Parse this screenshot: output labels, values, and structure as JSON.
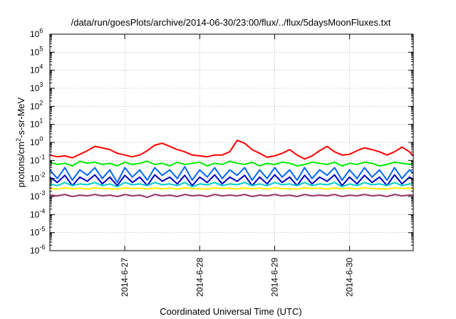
{
  "chart_data": {
    "type": "line",
    "title": "/data/run/goesPlots/archive/2014-06-30/23:00/flux/../flux/5daysMoonFluxes.txt",
    "xlabel": "Coordinated Universal Time (UTC)",
    "ylabel": {
      "prefix": "protons/cm",
      "sup": "2",
      "suffix": "-s-sr-MeV"
    },
    "yscale": "log",
    "ylim": [
      1e-06,
      1000000.0
    ],
    "xlim": [
      0,
      4.85
    ],
    "grid": true,
    "y_ticks": [
      {
        "exp": -6,
        "base": "10",
        "sup": "-6"
      },
      {
        "exp": -5,
        "base": "10",
        "sup": "-5"
      },
      {
        "exp": -4,
        "base": "10",
        "sup": "-4"
      },
      {
        "exp": -3,
        "base": "10",
        "sup": "-3"
      },
      {
        "exp": -2,
        "base": "10",
        "sup": "-2"
      },
      {
        "exp": -1,
        "base": "10",
        "sup": "-1"
      },
      {
        "exp": 0,
        "base": "10",
        "sup": "0"
      },
      {
        "exp": 1,
        "base": "10",
        "sup": "1"
      },
      {
        "exp": 2,
        "base": "10",
        "sup": "2"
      },
      {
        "exp": 3,
        "base": "10",
        "sup": "3"
      },
      {
        "exp": 4,
        "base": "10",
        "sup": "4"
      },
      {
        "exp": 5,
        "base": "10",
        "sup": "5"
      },
      {
        "exp": 6,
        "base": "10",
        "sup": "6"
      }
    ],
    "x_ticks": [
      {
        "day": 1,
        "label": "2014-6-27"
      },
      {
        "day": 2,
        "label": "2014-6-28"
      },
      {
        "day": 3,
        "label": "2014-6-29"
      },
      {
        "day": 4,
        "label": "2014-6-30"
      }
    ],
    "x": [
      0.0,
      0.1,
      0.2,
      0.3,
      0.4,
      0.5,
      0.6,
      0.7,
      0.8,
      0.9,
      1.0,
      1.1,
      1.2,
      1.3,
      1.4,
      1.5,
      1.6,
      1.7,
      1.8,
      1.9,
      2.0,
      2.1,
      2.2,
      2.3,
      2.4,
      2.5,
      2.6,
      2.7,
      2.8,
      2.9,
      3.0,
      3.1,
      3.2,
      3.3,
      3.4,
      3.5,
      3.6,
      3.7,
      3.8,
      3.9,
      4.0,
      4.1,
      4.2,
      4.3,
      4.4,
      4.5,
      4.6,
      4.7,
      4.8,
      4.85
    ],
    "series": [
      {
        "color": "#ff0000",
        "values": [
          0.2,
          0.16,
          0.18,
          0.14,
          0.22,
          0.35,
          0.6,
          0.5,
          0.4,
          0.25,
          0.2,
          0.16,
          0.2,
          0.35,
          0.7,
          0.9,
          0.6,
          0.4,
          0.3,
          0.2,
          0.18,
          0.16,
          0.2,
          0.2,
          0.3,
          1.3,
          0.9,
          0.4,
          0.25,
          0.15,
          0.18,
          0.25,
          0.4,
          0.2,
          0.12,
          0.18,
          0.35,
          0.6,
          0.3,
          0.2,
          0.22,
          0.35,
          0.5,
          0.4,
          0.3,
          0.2,
          0.3,
          0.55,
          0.3,
          0.18
        ]
      },
      {
        "color": "#00ee00",
        "values": [
          0.08,
          0.06,
          0.07,
          0.05,
          0.09,
          0.07,
          0.08,
          0.06,
          0.07,
          0.05,
          0.08,
          0.06,
          0.07,
          0.09,
          0.06,
          0.07,
          0.05,
          0.08,
          0.06,
          0.07,
          0.08,
          0.05,
          0.07,
          0.06,
          0.09,
          0.07,
          0.06,
          0.08,
          0.05,
          0.07,
          0.06,
          0.08,
          0.07,
          0.05,
          0.06,
          0.08,
          0.07,
          0.06,
          0.08,
          0.05,
          0.07,
          0.06,
          0.08,
          0.07,
          0.05,
          0.06,
          0.08,
          0.07,
          0.06,
          0.07
        ]
      },
      {
        "color": "#0066ff",
        "values": [
          0.03,
          0.01,
          0.04,
          0.008,
          0.03,
          0.015,
          0.04,
          0.01,
          0.03,
          0.006,
          0.04,
          0.012,
          0.03,
          0.008,
          0.04,
          0.015,
          0.03,
          0.01,
          0.045,
          0.008,
          0.03,
          0.012,
          0.04,
          0.01,
          0.03,
          0.015,
          0.04,
          0.008,
          0.03,
          0.01,
          0.04,
          0.012,
          0.03,
          0.008,
          0.04,
          0.01,
          0.03,
          0.015,
          0.04,
          0.008,
          0.03,
          0.01,
          0.04,
          0.012,
          0.03,
          0.008,
          0.04,
          0.01,
          0.03,
          0.02
        ]
      },
      {
        "color": "#0000cc",
        "values": [
          0.012,
          0.006,
          0.015,
          0.004,
          0.012,
          0.007,
          0.016,
          0.005,
          0.012,
          0.004,
          0.015,
          0.006,
          0.012,
          0.004,
          0.016,
          0.007,
          0.012,
          0.005,
          0.015,
          0.004,
          0.012,
          0.006,
          0.016,
          0.005,
          0.012,
          0.007,
          0.015,
          0.004,
          0.012,
          0.005,
          0.016,
          0.006,
          0.012,
          0.004,
          0.015,
          0.005,
          0.012,
          0.007,
          0.016,
          0.004,
          0.012,
          0.005,
          0.015,
          0.006,
          0.012,
          0.004,
          0.016,
          0.005,
          0.012,
          0.009
        ]
      },
      {
        "color": "#00cccc",
        "values": [
          0.005,
          0.004,
          0.006,
          0.004,
          0.005,
          0.0045,
          0.006,
          0.004,
          0.005,
          0.0035,
          0.006,
          0.0045,
          0.005,
          0.004,
          0.006,
          0.0045,
          0.005,
          0.004,
          0.006,
          0.0035,
          0.005,
          0.0045,
          0.006,
          0.004,
          0.005,
          0.0045,
          0.006,
          0.004,
          0.005,
          0.004,
          0.006,
          0.0045,
          0.005,
          0.004,
          0.006,
          0.004,
          0.005,
          0.0045,
          0.006,
          0.0035,
          0.005,
          0.004,
          0.006,
          0.0045,
          0.005,
          0.004,
          0.006,
          0.004,
          0.005,
          0.005
        ]
      },
      {
        "color": "#ffee00",
        "values": [
          0.0028,
          0.0026,
          0.003,
          0.0027,
          0.0029,
          0.0026,
          0.003,
          0.0028,
          0.0027,
          0.0026,
          0.003,
          0.0028,
          0.0029,
          0.0026,
          0.003,
          0.0027,
          0.0029,
          0.0026,
          0.003,
          0.0028,
          0.0027,
          0.0026,
          0.003,
          0.0028,
          0.0029,
          0.0026,
          0.003,
          0.0027,
          0.0029,
          0.0026,
          0.003,
          0.0028,
          0.0027,
          0.0026,
          0.003,
          0.0028,
          0.0029,
          0.0026,
          0.003,
          0.0027,
          0.0029,
          0.0026,
          0.003,
          0.0028,
          0.0027,
          0.0026,
          0.003,
          0.0028,
          0.0029,
          0.0028
        ]
      },
      {
        "color": "#993366",
        "values": [
          0.0012,
          0.0011,
          0.0013,
          0.001,
          0.0012,
          0.0011,
          0.0013,
          0.0011,
          0.0012,
          0.001,
          0.0013,
          0.0011,
          0.0012,
          0.0009,
          0.0013,
          0.0011,
          0.0012,
          0.001,
          0.0013,
          0.0011,
          0.0012,
          0.001,
          0.0013,
          0.0011,
          0.0012,
          0.0011,
          0.0013,
          0.001,
          0.0012,
          0.0011,
          0.0013,
          0.0011,
          0.0012,
          0.001,
          0.0013,
          0.0011,
          0.0012,
          0.0011,
          0.0013,
          0.001,
          0.0012,
          0.0011,
          0.0013,
          0.0011,
          0.0012,
          0.001,
          0.0013,
          0.0011,
          0.0012,
          0.0012
        ]
      }
    ]
  }
}
